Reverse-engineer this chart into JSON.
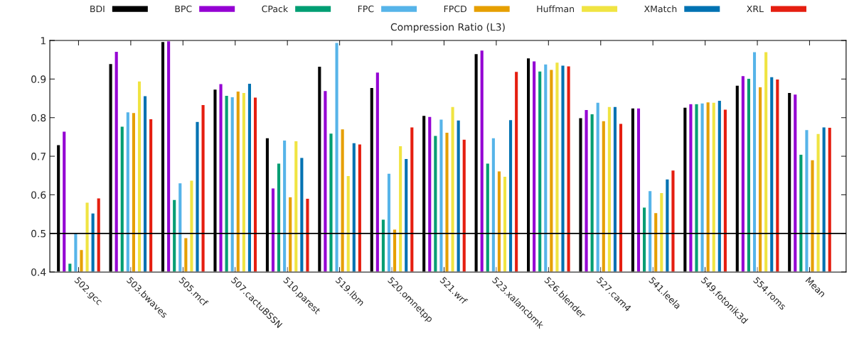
{
  "chart_data": {
    "type": "bar",
    "title": "Compression Ratio (L3)",
    "categories": [
      "502.gcc",
      "503.bwaves",
      "505.mcf",
      "507.cactuBSSN",
      "510.parest",
      "519.lbm",
      "520.omnetpp",
      "521.wrf",
      "523.xalancbmk",
      "526.blender",
      "527.cam4",
      "541.leela",
      "549.fotonik3d",
      "554.roms",
      "Mean"
    ],
    "series": [
      {
        "name": "BDI",
        "color": "#000000",
        "values": [
          0.73,
          0.94,
          0.997,
          0.874,
          0.748,
          0.933,
          0.878,
          0.806,
          0.966,
          0.955,
          0.8,
          0.825,
          0.827,
          0.884,
          0.865
        ]
      },
      {
        "name": "BPC",
        "color": "#9400d3",
        "values": [
          0.765,
          0.972,
          0.999,
          0.888,
          0.618,
          0.87,
          0.918,
          0.803,
          0.975,
          0.947,
          0.821,
          0.825,
          0.836,
          0.909,
          0.861
        ]
      },
      {
        "name": "CPack",
        "color": "#009e73",
        "values": [
          0.423,
          0.778,
          0.588,
          0.858,
          0.682,
          0.76,
          0.537,
          0.754,
          0.682,
          0.921,
          0.81,
          0.568,
          0.836,
          0.902,
          0.705
        ]
      },
      {
        "name": "FPC",
        "color": "#56b4e9",
        "values": [
          0.503,
          0.815,
          0.631,
          0.854,
          0.742,
          0.995,
          0.656,
          0.796,
          0.748,
          0.939,
          0.84,
          0.611,
          0.838,
          0.971,
          0.769
        ]
      },
      {
        "name": "FPCD",
        "color": "#e69f00",
        "values": [
          0.458,
          0.813,
          0.489,
          0.869,
          0.595,
          0.771,
          0.511,
          0.762,
          0.662,
          0.925,
          0.792,
          0.554,
          0.841,
          0.88,
          0.691
        ]
      },
      {
        "name": "Huffman",
        "color": "#f0e442",
        "values": [
          0.581,
          0.895,
          0.638,
          0.865,
          0.74,
          0.65,
          0.727,
          0.829,
          0.648,
          0.944,
          0.829,
          0.606,
          0.84,
          0.971,
          0.759
        ]
      },
      {
        "name": "XMatch",
        "color": "#0072b2",
        "values": [
          0.553,
          0.857,
          0.79,
          0.889,
          0.697,
          0.735,
          0.694,
          0.794,
          0.795,
          0.936,
          0.829,
          0.641,
          0.845,
          0.906,
          0.776
        ]
      },
      {
        "name": "XRL",
        "color": "#e51e10",
        "values": [
          0.592,
          0.797,
          0.834,
          0.853,
          0.591,
          0.732,
          0.776,
          0.744,
          0.92,
          0.934,
          0.785,
          0.664,
          0.822,
          0.9,
          0.775
        ]
      }
    ],
    "ylim": [
      0.4,
      1
    ],
    "yticks": [
      0.4,
      0.5,
      0.6,
      0.7,
      0.8,
      0.9,
      1
    ],
    "ref_lines": [
      {
        "axis": "y",
        "value": 0.5,
        "color": "#000000",
        "line_style": "solid"
      }
    ],
    "legend": "top",
    "grid": false
  }
}
